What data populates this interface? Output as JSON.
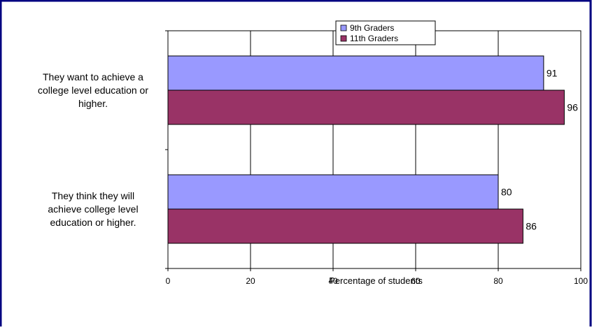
{
  "chart_data": {
    "type": "bar",
    "orientation": "horizontal",
    "categories": [
      "They want to achieve a college level education or higher.",
      "They think they will achieve college level education or higher."
    ],
    "category_lines": [
      [
        "They want to achieve a",
        "college level education or",
        "higher."
      ],
      [
        "They think they will",
        "achieve college level",
        "education or higher."
      ]
    ],
    "series": [
      {
        "name": "9th Graders",
        "values": [
          91,
          80
        ],
        "color": "#9999ff"
      },
      {
        "name": "11th Graders",
        "values": [
          96,
          86
        ],
        "color": "#993366"
      }
    ],
    "xlabel": "Percentage of students",
    "xlim": [
      0,
      100
    ],
    "xticks": [
      0,
      20,
      40,
      60,
      80,
      100
    ],
    "grid": true,
    "legend_position": "top-right",
    "frame_color": "#000080"
  }
}
